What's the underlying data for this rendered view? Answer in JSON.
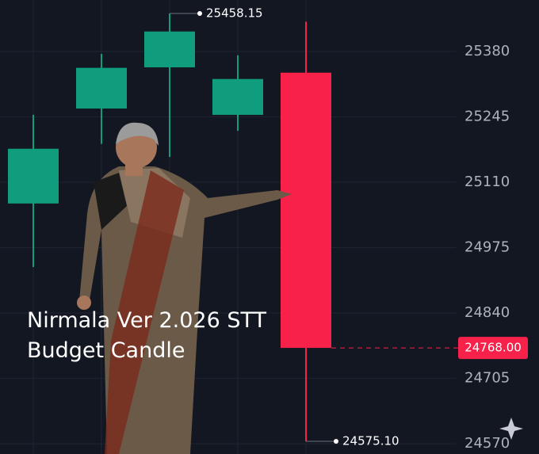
{
  "chart_data": {
    "type": "candlestick",
    "categories": [
      null,
      null,
      null,
      null,
      null
    ],
    "open": [
      25066,
      25262,
      25347,
      25249,
      25336
    ],
    "high": [
      25249,
      25375,
      25458.15,
      25372,
      25441
    ],
    "low": [
      24935,
      25189,
      25162,
      25216,
      24575.1
    ],
    "close": [
      25179,
      25346,
      25421,
      25323,
      24768
    ],
    "up_color": "#0f9d7e",
    "down_color": "#f7214a",
    "ylim": [
      24549,
      25486
    ],
    "yticks": [
      24570,
      24705,
      24840,
      24975,
      25110,
      25245,
      25380
    ],
    "grid": true,
    "high_marker": 25458.15,
    "low_marker": {
      "value": 24575.1,
      "label": "24575.10"
    },
    "last_price": {
      "value": 24768,
      "label": "24768.00"
    },
    "annotation": "Nirmala Ver 2.026 STT Budget Candle"
  }
}
